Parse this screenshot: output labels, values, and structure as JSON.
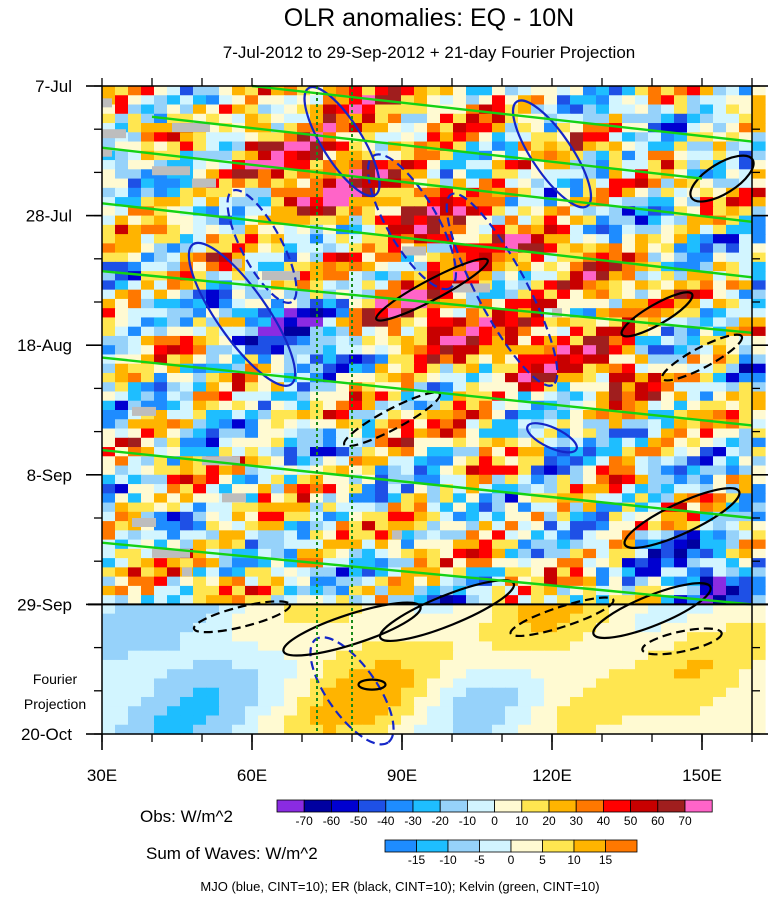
{
  "chart_data": {
    "type": "heatmap",
    "title": "OLR anomalies: EQ - 10N",
    "subtitle": "7-Jul-2012 to 29-Sep-2012 + 21-day Fourier Projection",
    "x_axis": {
      "range": [
        30,
        160
      ],
      "ticks": [
        30,
        60,
        90,
        120,
        150
      ],
      "tick_labels": [
        "30E",
        "60E",
        "90E",
        "120E",
        "150E"
      ]
    },
    "y_axis": {
      "range_days": [
        0,
        105
      ],
      "ticks_days": [
        0,
        21,
        42,
        63,
        84,
        105
      ],
      "tick_labels": [
        "7-Jul",
        "28-Jul",
        "18-Aug",
        "8-Sep",
        "29-Sep",
        "20-Oct"
      ],
      "minor_step_days": 7
    },
    "projection": {
      "start_day": 84,
      "label_line1": "Fourier",
      "label_line2": "Projection"
    },
    "dashed_markers": [
      {
        "lon": 73,
        "color": "#1a8a1a"
      },
      {
        "lon": 80,
        "color": "#1a8a1a"
      }
    ],
    "obs_colorbar": {
      "label": "Obs: W/m^2",
      "levels": [
        "-70",
        "-60",
        "-50",
        "-40",
        "-30",
        "-20",
        "-10",
        "0",
        "10",
        "20",
        "30",
        "40",
        "50",
        "60",
        "70"
      ],
      "colors": [
        "#8a2be2",
        "#0000a0",
        "#0000d0",
        "#1e50e6",
        "#1e8cff",
        "#1ebeff",
        "#96d2fa",
        "#d2f5ff",
        "#fffad2",
        "#ffe650",
        "#ffb400",
        "#ff7800",
        "#ff0000",
        "#c80000",
        "#a01e1e",
        "#ff64c8"
      ]
    },
    "waves_colorbar": {
      "label": "Sum of Waves: W/m^2",
      "levels": [
        "-15",
        "-10",
        "-5",
        "0",
        "5",
        "10",
        "15"
      ],
      "colors": [
        "#1e8cff",
        "#1ebeff",
        "#96d2fa",
        "#d2f5ff",
        "#fffad2",
        "#ffe650",
        "#ffb400",
        "#ff7800"
      ]
    },
    "contour_legend": "MJO (blue, CINT=10); ER (black, CINT=10); Kelvin (green, CINT=10)",
    "contours": {
      "mjo": [
        {
          "lon": 62,
          "day": 26,
          "a": 4,
          "b": 14,
          "angle": 62,
          "dash": true
        },
        {
          "lon": 92,
          "day": 22,
          "a": 5,
          "b": 17,
          "angle": 60,
          "dash": true
        },
        {
          "lon": 78,
          "day": 9,
          "a": 4,
          "b": 14,
          "angle": 58,
          "dash": false
        },
        {
          "lon": 120,
          "day": 11,
          "a": 4,
          "b": 14,
          "angle": 56,
          "dash": false
        },
        {
          "lon": 58,
          "day": 37,
          "a": 5,
          "b": 19,
          "angle": 55,
          "dash": false
        },
        {
          "lon": 120,
          "day": 57,
          "a": 2,
          "b": 6,
          "angle": 25,
          "dash": false
        },
        {
          "lon": 110,
          "day": 33,
          "a": 5,
          "b": 24,
          "angle": 62,
          "dash": true
        },
        {
          "lon": 80,
          "day": 98,
          "a": 5,
          "b": 14,
          "angle": 55,
          "dash": true
        }
      ],
      "er": [
        {
          "lon": 96,
          "day": 33,
          "a": 2,
          "b": 14,
          "angle": -28,
          "dash": false
        },
        {
          "lon": 88,
          "day": 54,
          "a": 2,
          "b": 12,
          "angle": -28,
          "dash": true
        },
        {
          "lon": 141,
          "day": 37,
          "a": 2,
          "b": 9,
          "angle": -30,
          "dash": false
        },
        {
          "lon": 150,
          "day": 44,
          "a": 2,
          "b": 10,
          "angle": -28,
          "dash": true
        },
        {
          "lon": 154,
          "day": 15,
          "a": 3,
          "b": 8,
          "angle": -32,
          "dash": false
        },
        {
          "lon": 99,
          "day": 85,
          "a": 3,
          "b": 16,
          "angle": -22,
          "dash": false
        },
        {
          "lon": 80,
          "day": 88,
          "a": 3,
          "b": 16,
          "angle": -18,
          "dash": false
        },
        {
          "lon": 58,
          "day": 86,
          "a": 2,
          "b": 11,
          "angle": -14,
          "dash": true
        },
        {
          "lon": 122,
          "day": 86,
          "a": 2,
          "b": 12,
          "angle": -18,
          "dash": true
        },
        {
          "lon": 146,
          "day": 70,
          "a": 3,
          "b": 14,
          "angle": -25,
          "dash": false
        },
        {
          "lon": 140,
          "day": 85,
          "a": 3,
          "b": 14,
          "angle": -22,
          "dash": false
        },
        {
          "lon": 146,
          "day": 90,
          "a": 2,
          "b": 9,
          "angle": -12,
          "dash": true
        },
        {
          "lon": 84,
          "day": 97,
          "a": 1,
          "b": 3,
          "angle": 0,
          "dash": false
        }
      ],
      "kelvin_lines": [
        {
          "lon1": 30,
          "day1": 10,
          "lon2": 160,
          "day2": 22
        },
        {
          "lon1": 30,
          "day1": 19,
          "lon2": 160,
          "day2": 31
        },
        {
          "lon1": 30,
          "day1": 30,
          "lon2": 160,
          "day2": 40
        },
        {
          "lon1": 30,
          "day1": 44,
          "lon2": 160,
          "day2": 55
        },
        {
          "lon1": 30,
          "day1": 59,
          "lon2": 160,
          "day2": 70
        },
        {
          "lon1": 30,
          "day1": 74,
          "lon2": 160,
          "day2": 84
        },
        {
          "lon1": 60,
          "day1": 0,
          "lon2": 160,
          "day2": 9
        },
        {
          "lon1": 40,
          "day1": 5,
          "lon2": 150,
          "day2": 15
        }
      ]
    }
  }
}
